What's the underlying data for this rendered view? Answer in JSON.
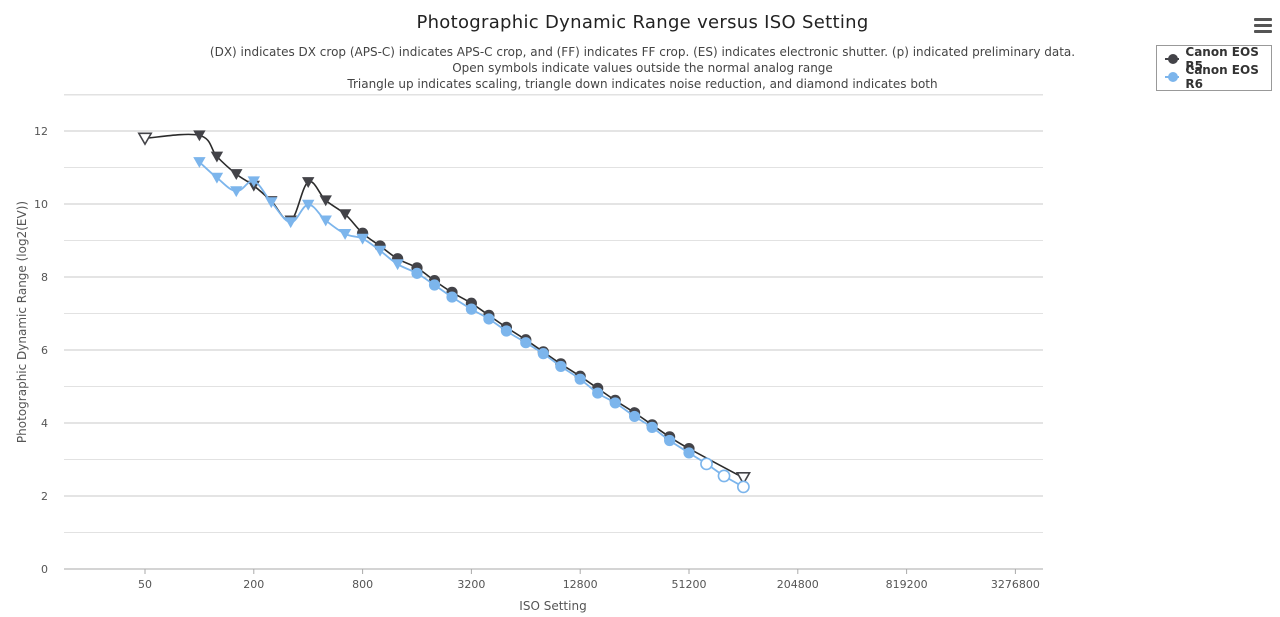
{
  "chart_data": {
    "type": "line",
    "title": "Photographic Dynamic Range versus ISO Setting",
    "subtitle_lines": [
      "(DX) indicates DX crop (APS-C) indicates APS-C crop, and (FF) indicates FF crop. (ES) indicates electronic shutter. (p) indicated preliminary data.",
      "Open symbols indicate values outside the normal analog range",
      "Triangle up indicates scaling, triangle down indicates noise reduction, and diamond indicates both"
    ],
    "xlabel": "ISO Setting",
    "ylabel": "Photographic Dynamic Range (log2(EV))",
    "x_scale": "log2",
    "x_ticks": [
      "50",
      "200",
      "800",
      "3200",
      "12800",
      "51200",
      "204800",
      "819200",
      "3276800"
    ],
    "y_ticks": [
      0,
      2,
      4,
      6,
      8,
      10,
      12
    ],
    "ylim": [
      0,
      13
    ],
    "grid": "horizontal",
    "legend_position": "top-right",
    "series": [
      {
        "name": "Canon EOS R5",
        "color": "#434348",
        "points": [
          {
            "x": 50,
            "y": 11.8,
            "marker": "triangle-down-open"
          },
          {
            "x": 100,
            "y": 11.88,
            "marker": "triangle-down"
          },
          {
            "x": 125,
            "y": 11.3,
            "marker": "triangle-down"
          },
          {
            "x": 160,
            "y": 10.82,
            "marker": "triangle-down"
          },
          {
            "x": 200,
            "y": 10.5,
            "marker": "triangle-down"
          },
          {
            "x": 250,
            "y": 10.08,
            "marker": "triangle-down"
          },
          {
            "x": 320,
            "y": 9.55,
            "marker": "triangle-down"
          },
          {
            "x": 400,
            "y": 10.6,
            "marker": "triangle-down"
          },
          {
            "x": 500,
            "y": 10.1,
            "marker": "triangle-down"
          },
          {
            "x": 640,
            "y": 9.72,
            "marker": "triangle-down"
          },
          {
            "x": 800,
            "y": 9.2,
            "marker": "circle"
          },
          {
            "x": 1000,
            "y": 8.85,
            "marker": "circle"
          },
          {
            "x": 1250,
            "y": 8.5,
            "marker": "circle"
          },
          {
            "x": 1600,
            "y": 8.25,
            "marker": "circle"
          },
          {
            "x": 2000,
            "y": 7.9,
            "marker": "circle"
          },
          {
            "x": 2500,
            "y": 7.58,
            "marker": "circle"
          },
          {
            "x": 3200,
            "y": 7.28,
            "marker": "circle"
          },
          {
            "x": 4000,
            "y": 6.95,
            "marker": "circle"
          },
          {
            "x": 5000,
            "y": 6.62,
            "marker": "circle"
          },
          {
            "x": 6400,
            "y": 6.28,
            "marker": "circle"
          },
          {
            "x": 8000,
            "y": 5.95,
            "marker": "circle"
          },
          {
            "x": 10000,
            "y": 5.62,
            "marker": "circle"
          },
          {
            "x": 12800,
            "y": 5.28,
            "marker": "circle"
          },
          {
            "x": 16000,
            "y": 4.95,
            "marker": "circle"
          },
          {
            "x": 20000,
            "y": 4.62,
            "marker": "circle"
          },
          {
            "x": 25600,
            "y": 4.28,
            "marker": "circle"
          },
          {
            "x": 32000,
            "y": 3.95,
            "marker": "circle"
          },
          {
            "x": 40000,
            "y": 3.62,
            "marker": "circle"
          },
          {
            "x": 51200,
            "y": 3.3,
            "marker": "circle"
          },
          {
            "x": 102400,
            "y": 2.5,
            "marker": "triangle-down-open"
          }
        ]
      },
      {
        "name": "Canon EOS R6",
        "color": "#7cb5ec",
        "points": [
          {
            "x": 100,
            "y": 11.15,
            "marker": "triangle-down"
          },
          {
            "x": 125,
            "y": 10.72,
            "marker": "triangle-down"
          },
          {
            "x": 160,
            "y": 10.35,
            "marker": "triangle-down"
          },
          {
            "x": 200,
            "y": 10.62,
            "marker": "triangle-down"
          },
          {
            "x": 250,
            "y": 10.05,
            "marker": "triangle-down"
          },
          {
            "x": 320,
            "y": 9.5,
            "marker": "triangle-down"
          },
          {
            "x": 400,
            "y": 9.98,
            "marker": "triangle-down"
          },
          {
            "x": 500,
            "y": 9.55,
            "marker": "triangle-down"
          },
          {
            "x": 640,
            "y": 9.18,
            "marker": "triangle-down"
          },
          {
            "x": 800,
            "y": 9.05,
            "marker": "triangle-down"
          },
          {
            "x": 1000,
            "y": 8.72,
            "marker": "triangle-down"
          },
          {
            "x": 1250,
            "y": 8.35,
            "marker": "triangle-down"
          },
          {
            "x": 1600,
            "y": 8.1,
            "marker": "circle"
          },
          {
            "x": 2000,
            "y": 7.78,
            "marker": "circle"
          },
          {
            "x": 2500,
            "y": 7.45,
            "marker": "circle"
          },
          {
            "x": 3200,
            "y": 7.12,
            "marker": "circle"
          },
          {
            "x": 4000,
            "y": 6.85,
            "marker": "circle"
          },
          {
            "x": 5000,
            "y": 6.52,
            "marker": "circle"
          },
          {
            "x": 6400,
            "y": 6.2,
            "marker": "circle"
          },
          {
            "x": 8000,
            "y": 5.9,
            "marker": "circle"
          },
          {
            "x": 10000,
            "y": 5.55,
            "marker": "circle"
          },
          {
            "x": 12800,
            "y": 5.2,
            "marker": "circle"
          },
          {
            "x": 16000,
            "y": 4.82,
            "marker": "circle"
          },
          {
            "x": 20000,
            "y": 4.55,
            "marker": "circle"
          },
          {
            "x": 25600,
            "y": 4.18,
            "marker": "circle"
          },
          {
            "x": 32000,
            "y": 3.88,
            "marker": "circle"
          },
          {
            "x": 40000,
            "y": 3.52,
            "marker": "circle"
          },
          {
            "x": 51200,
            "y": 3.18,
            "marker": "circle"
          },
          {
            "x": 64000,
            "y": 2.88,
            "marker": "circle-open"
          },
          {
            "x": 80000,
            "y": 2.55,
            "marker": "circle-open"
          },
          {
            "x": 102400,
            "y": 2.25,
            "marker": "circle-open"
          }
        ]
      }
    ]
  },
  "ui": {
    "menu_icon": "hamburger-icon"
  }
}
